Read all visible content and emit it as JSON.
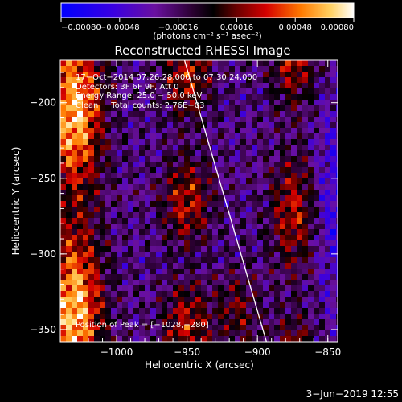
{
  "chart_data": {
    "type": "heatmap",
    "title": "Reconstructed RHESSI Image",
    "xlabel": "Heliocentric X (arcsec)",
    "ylabel": "Heliocentric Y (arcsec)",
    "xlim": [
      -1040,
      -843
    ],
    "ylim": [
      -358,
      -172
    ],
    "x_ticks": [
      -1000,
      -950,
      -900,
      -850
    ],
    "y_ticks": [
      -200,
      -250,
      -300,
      -350
    ],
    "x_tick_labels": [
      "−1000",
      "−950",
      "−900",
      "−850"
    ],
    "y_tick_labels": [
      "−200",
      "−250",
      "−300",
      "−350"
    ],
    "colorbar": {
      "min": -0.0008,
      "max": 0.0008,
      "ticks": [
        -0.0008,
        -0.00048,
        -0.00016,
        0.00016,
        0.00048,
        0.0008
      ],
      "tick_labels": [
        "−0.00080",
        "−0.00048",
        "−0.00016",
        "0.00016",
        "0.00048",
        "0.00080"
      ],
      "unit": "(photons cm⁻² s⁻¹ asec⁻²)",
      "colors": [
        "#0000ff",
        "#4400dd",
        "#6a1a9a",
        "#000000",
        "#7a0000",
        "#ff0000",
        "#ff9900",
        "#ffffff"
      ]
    },
    "annotations": [
      "17−Oct−2014 07:26:28.000 to 07:30:24.000",
      "Detectors: 3F 6F 9F, Att 0",
      "Energy Range: 25.0 − 50.0 keV",
      "Clean     Total counts: 2.76E+03"
    ],
    "peak_label": "Position of Peak = [−1028,−280]",
    "peak": [
      -1028,
      -280
    ],
    "limb_line": [
      [
        -953,
        -168
      ],
      [
        -893,
        -360
      ]
    ]
  },
  "footer": {
    "date": "3−Jun−2019 12:55"
  }
}
